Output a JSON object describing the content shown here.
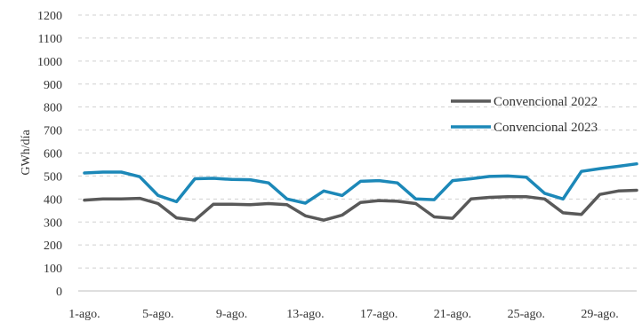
{
  "chart_data": {
    "type": "line",
    "xlabel": "",
    "ylabel": "GWh/día",
    "ylim": [
      0,
      1200
    ],
    "yticks": [
      0,
      100,
      200,
      300,
      400,
      500,
      600,
      700,
      800,
      900,
      1000,
      1100,
      1200
    ],
    "y_tick_labels": [
      "0",
      "100",
      "200",
      "300",
      "400",
      "500",
      "600",
      "700",
      "800",
      "900",
      "1000",
      "1100",
      "1200"
    ],
    "grid": "horizontal",
    "legend_position": "right",
    "x": [
      "1-ago.",
      "2-ago.",
      "3-ago.",
      "4-ago.",
      "5-ago.",
      "6-ago.",
      "7-ago.",
      "8-ago.",
      "9-ago.",
      "10-ago.",
      "11-ago.",
      "12-ago.",
      "13-ago.",
      "14-ago.",
      "15-ago.",
      "16-ago.",
      "17-ago.",
      "18-ago.",
      "19-ago.",
      "20-ago.",
      "21-ago.",
      "22-ago.",
      "23-ago.",
      "24-ago.",
      "25-ago.",
      "26-ago.",
      "27-ago.",
      "28-ago.",
      "29-ago.",
      "30-ago.",
      "31-ago."
    ],
    "x_tick_labels": [
      "1-ago.",
      "5-ago.",
      "9-ago.",
      "13-ago.",
      "17-ago.",
      "21-ago.",
      "25-ago.",
      "29-ago."
    ],
    "series": [
      {
        "name": "Convencional 2022",
        "color": "#595959",
        "values": [
          395,
          400,
          400,
          403,
          380,
          318,
          308,
          377,
          377,
          375,
          380,
          375,
          327,
          308,
          330,
          385,
          393,
          390,
          380,
          322,
          316,
          400,
          407,
          410,
          410,
          400,
          340,
          333,
          420,
          435,
          438
        ]
      },
      {
        "name": "Convencional 2023",
        "color": "#1c88b8",
        "values": [
          513,
          517,
          517,
          497,
          415,
          388,
          488,
          490,
          485,
          484,
          470,
          400,
          382,
          435,
          415,
          477,
          480,
          470,
          400,
          397,
          480,
          488,
          498,
          500,
          495,
          425,
          400,
          520,
          532,
          542,
          553
        ]
      }
    ]
  }
}
